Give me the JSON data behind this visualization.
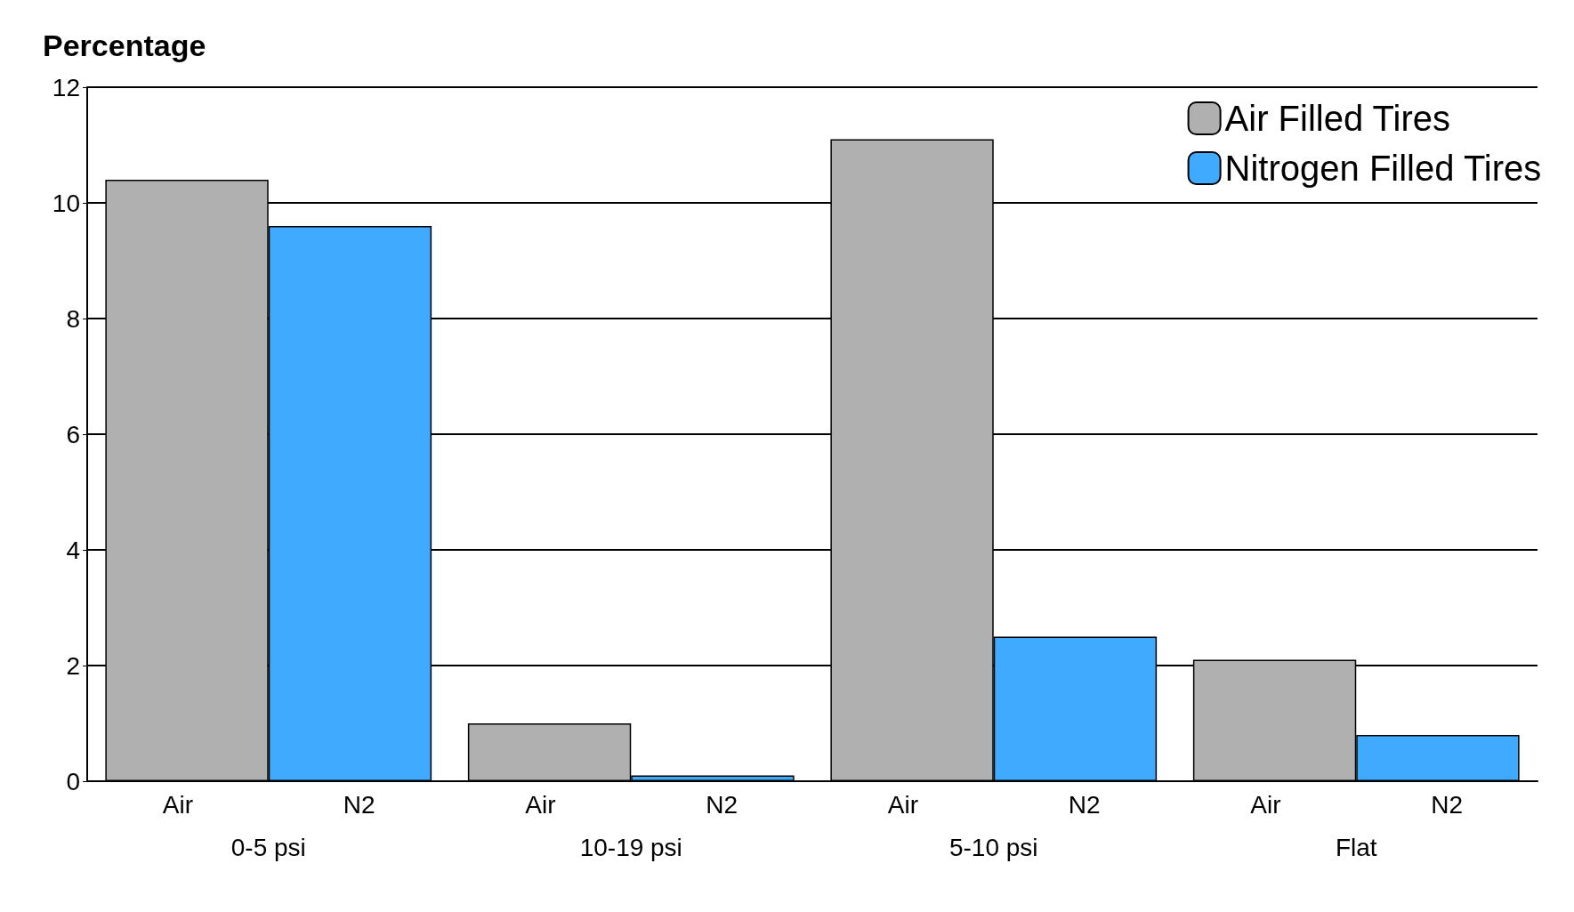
{
  "chart_data": {
    "type": "bar",
    "ylabel": "Percentage",
    "categories": [
      "0-5 psi",
      "10-19 psi",
      "5-10 psi",
      "Flat"
    ],
    "series": [
      {
        "name": "Air Filled Tires",
        "color": "#b0b0b0",
        "values": [
          10.4,
          1.0,
          11.1,
          2.1
        ]
      },
      {
        "name": "Nitrogen Filled Tires",
        "color": "#40aaff",
        "values": [
          9.6,
          0.1,
          2.5,
          0.8
        ]
      }
    ],
    "annotations": [
      "Air",
      "N2",
      "Air",
      "N2",
      "Air",
      "N2",
      "Air",
      "N2"
    ],
    "ylim": [
      0,
      12
    ],
    "yticks": [
      0,
      2,
      4,
      6,
      8,
      10,
      12
    ],
    "grid": "y",
    "legend": "top right"
  }
}
